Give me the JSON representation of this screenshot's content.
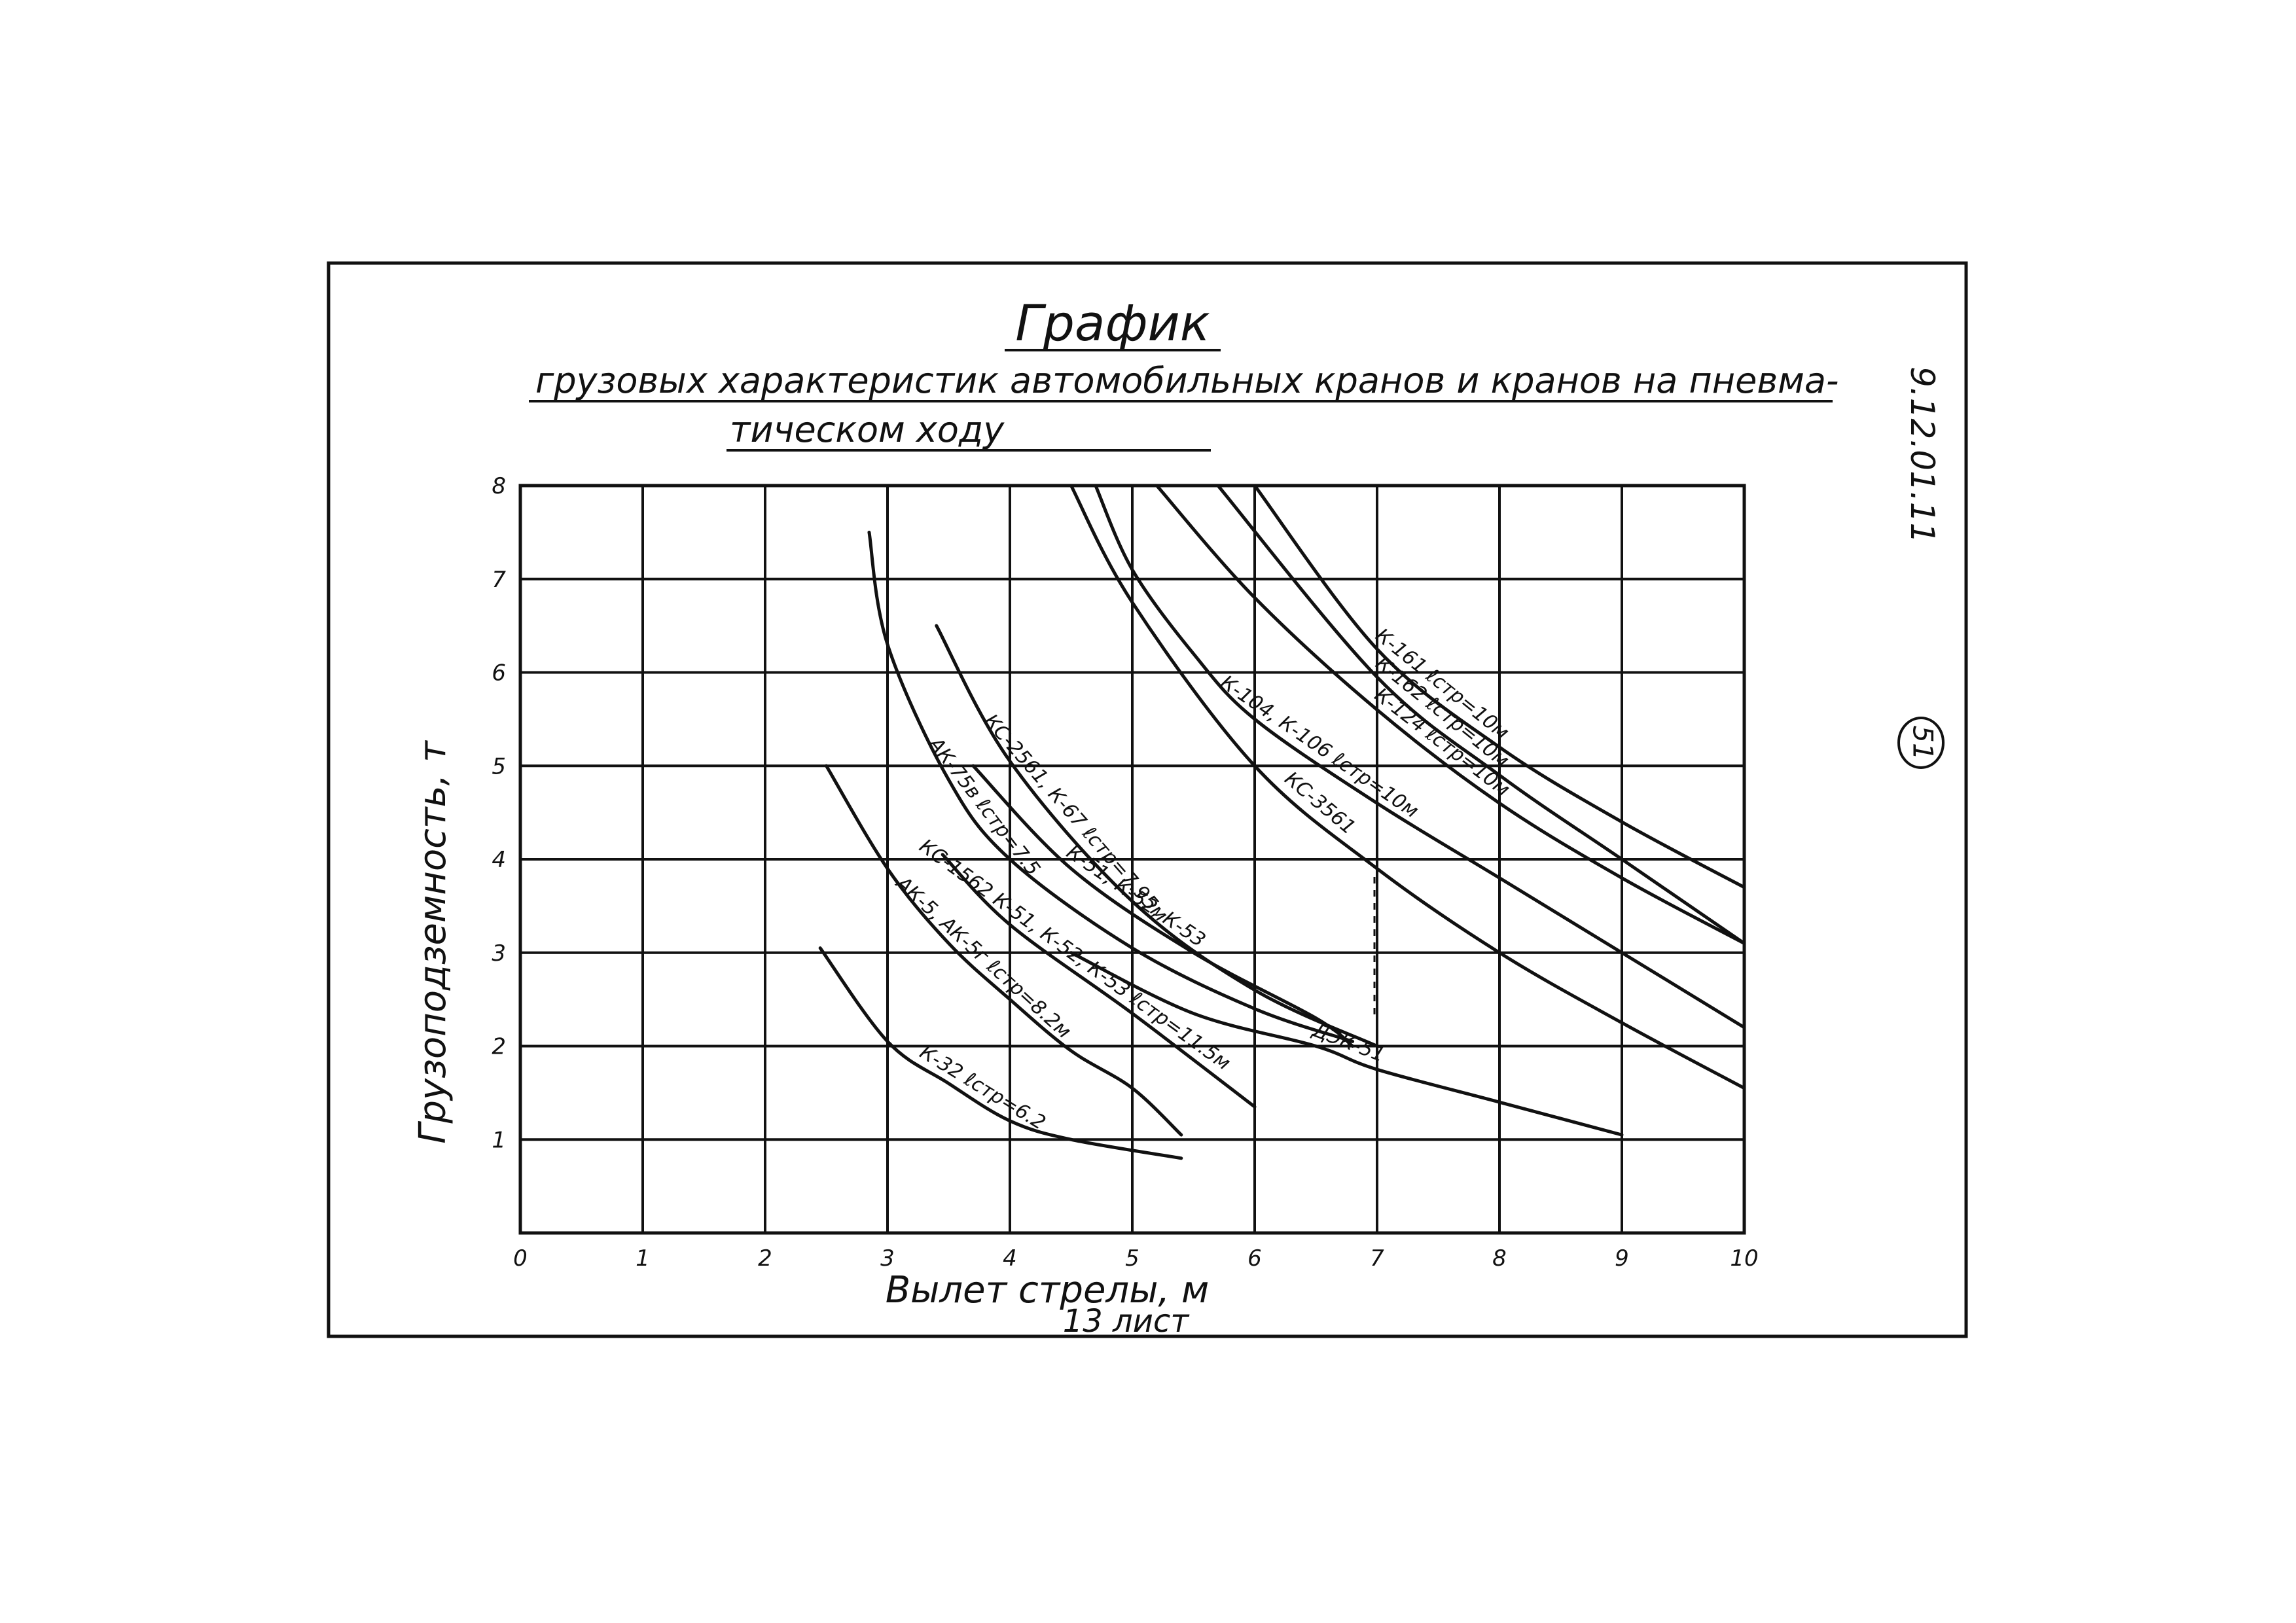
{
  "sheet": {
    "code": "9.12.01.11",
    "page_number": "51"
  },
  "chart_data": {
    "type": "line",
    "title": "График",
    "subtitle_line1": "грузовых характеристик автомобильных кранов и кранов на пневма-",
    "subtitle_line2": "тическом ходу",
    "xlabel": "Вылет стрелы, м",
    "footnote": "13 лист",
    "ylabel": "Грузоподземность, т",
    "xlim": [
      0,
      10
    ],
    "ylim": [
      0,
      8
    ],
    "x_ticks": [
      "0",
      "1",
      "2",
      "3",
      "4",
      "5",
      "6",
      "7",
      "8",
      "9",
      "10"
    ],
    "y_ticks": [
      "1",
      "2",
      "3",
      "4",
      "5",
      "6",
      "7",
      "8"
    ],
    "grid": true,
    "series": [
      {
        "name": "К-161 ℓстр=10м",
        "points": [
          [
            6.0,
            8.0
          ],
          [
            7.0,
            6.25
          ],
          [
            8.0,
            5.2
          ],
          [
            9.0,
            4.4
          ],
          [
            10.0,
            3.7
          ]
        ]
      },
      {
        "name": "К-162 ℓстр=10м",
        "points": [
          [
            5.7,
            8.0
          ],
          [
            7.0,
            5.95
          ],
          [
            8.0,
            4.9
          ],
          [
            9.0,
            4.0
          ],
          [
            10.0,
            3.1
          ]
        ]
      },
      {
        "name": "К-124 ℓстр=10м",
        "points": [
          [
            5.2,
            8.0
          ],
          [
            6.0,
            6.8
          ],
          [
            7.0,
            5.6
          ],
          [
            8.0,
            4.6
          ],
          [
            9.0,
            3.8
          ],
          [
            10.0,
            3.1
          ]
        ]
      },
      {
        "name": "К-104, К-106 ℓстр=10м",
        "points": [
          [
            4.7,
            8.0
          ],
          [
            5.0,
            7.1
          ],
          [
            5.5,
            6.2
          ],
          [
            6.0,
            5.5
          ],
          [
            7.0,
            4.6
          ],
          [
            8.0,
            3.8
          ],
          [
            9.0,
            3.0
          ],
          [
            10.0,
            2.2
          ]
        ]
      },
      {
        "name": "КС-3561",
        "points": [
          [
            4.5,
            8.0
          ],
          [
            5.0,
            6.75
          ],
          [
            6.0,
            5.0
          ],
          [
            7.0,
            3.9
          ],
          [
            8.0,
            3.0
          ],
          [
            9.0,
            2.25
          ],
          [
            10.0,
            1.55
          ]
        ]
      },
      {
        "name": "АК-75в ℓстр=7.5",
        "points": [
          [
            2.85,
            7.5
          ],
          [
            3.0,
            6.3
          ],
          [
            3.5,
            4.85
          ],
          [
            4.0,
            4.0
          ],
          [
            5.0,
            3.05
          ],
          [
            6.0,
            2.4
          ],
          [
            6.8,
            2.05
          ]
        ]
      },
      {
        "name": "КС-2561, К-67 ℓстр=7.95м",
        "points": [
          [
            3.4,
            6.5
          ],
          [
            4.0,
            5.05
          ],
          [
            5.0,
            3.55
          ],
          [
            6.0,
            2.6
          ],
          [
            7.0,
            2.0
          ]
        ]
      },
      {
        "name": "К-51, К-52, К-53",
        "points": [
          [
            3.7,
            5.0
          ],
          [
            4.5,
            3.9
          ],
          [
            5.5,
            3.0
          ],
          [
            6.5,
            2.3
          ],
          [
            6.8,
            2.0
          ]
        ]
      },
      {
        "name": "ДЭК-51",
        "points": [
          [
            4.5,
            3.0
          ],
          [
            5.5,
            2.35
          ],
          [
            6.5,
            2.0
          ],
          [
            7.0,
            1.75
          ],
          [
            8.0,
            1.4
          ],
          [
            9.0,
            1.05
          ]
        ]
      },
      {
        "name": "АК-5, АК-5г ℓстр=8.2м",
        "points": [
          [
            2.5,
            5.0
          ],
          [
            3.0,
            3.9
          ],
          [
            3.5,
            3.1
          ],
          [
            4.0,
            2.5
          ],
          [
            4.5,
            1.95
          ],
          [
            5.0,
            1.55
          ],
          [
            5.4,
            1.05
          ]
        ]
      },
      {
        "name": "КС-1562 К-51, К-52, К-53 ℓстр=11.5м",
        "points": [
          [
            3.45,
            4.05
          ],
          [
            4.0,
            3.3
          ],
          [
            5.0,
            2.35
          ],
          [
            6.0,
            1.35
          ]
        ]
      },
      {
        "name": "К-32 ℓстр=6.2",
        "points": [
          [
            2.45,
            3.05
          ],
          [
            3.0,
            2.05
          ],
          [
            3.5,
            1.6
          ],
          [
            4.0,
            1.2
          ],
          [
            4.5,
            1.0
          ],
          [
            5.4,
            0.8
          ]
        ]
      }
    ]
  }
}
